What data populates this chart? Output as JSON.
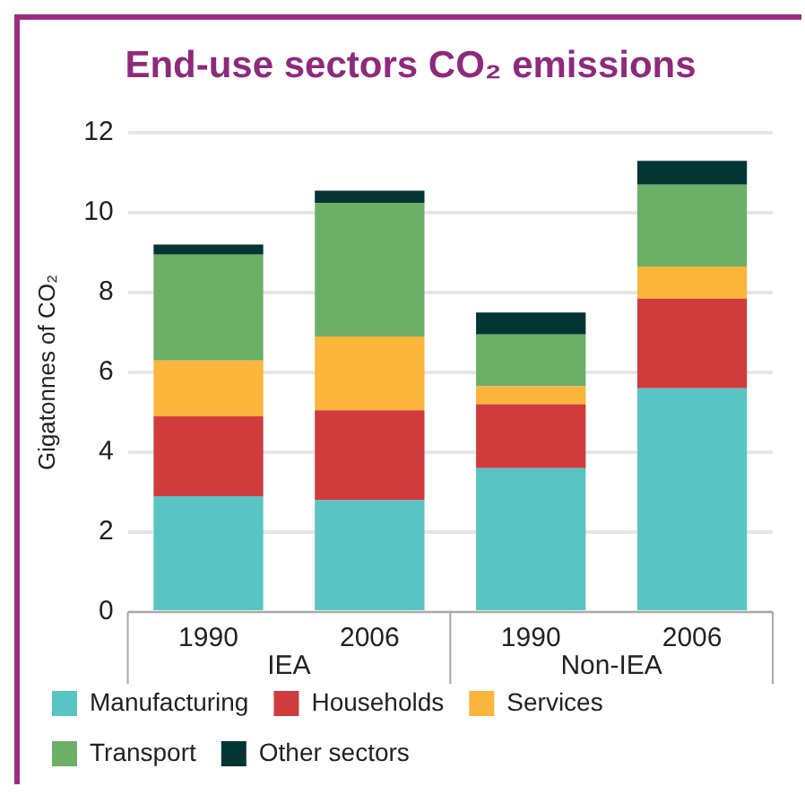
{
  "chart_data": {
    "type": "bar",
    "title": "End-use sectors CO₂ emissions",
    "ylabel": "Gigatonnes of CO₂",
    "categories": [
      "1990",
      "2006",
      "1990",
      "2006"
    ],
    "annotations": [
      "IEA",
      "Non-IEA"
    ],
    "stacked": true,
    "series": [
      {
        "name": "Manufacturing",
        "color": "#58c4c4",
        "values": [
          2.9,
          2.8,
          3.6,
          5.6
        ]
      },
      {
        "name": "Households",
        "color": "#d03c3c",
        "values": [
          2.0,
          2.25,
          1.6,
          2.25
        ]
      },
      {
        "name": "Services",
        "color": "#fbb53a",
        "values": [
          1.4,
          1.85,
          0.45,
          0.8
        ]
      },
      {
        "name": "Transport",
        "color": "#6caf66",
        "values": [
          2.65,
          3.35,
          1.3,
          2.05
        ]
      },
      {
        "name": "Other sectors",
        "color": "#043535",
        "values": [
          0.25,
          0.3,
          0.55,
          0.6
        ]
      }
    ],
    "ylim": [
      0,
      12
    ],
    "yticks": [
      0,
      2,
      4,
      6,
      8,
      10,
      12
    ],
    "grid": "y",
    "legend": "bottom"
  }
}
